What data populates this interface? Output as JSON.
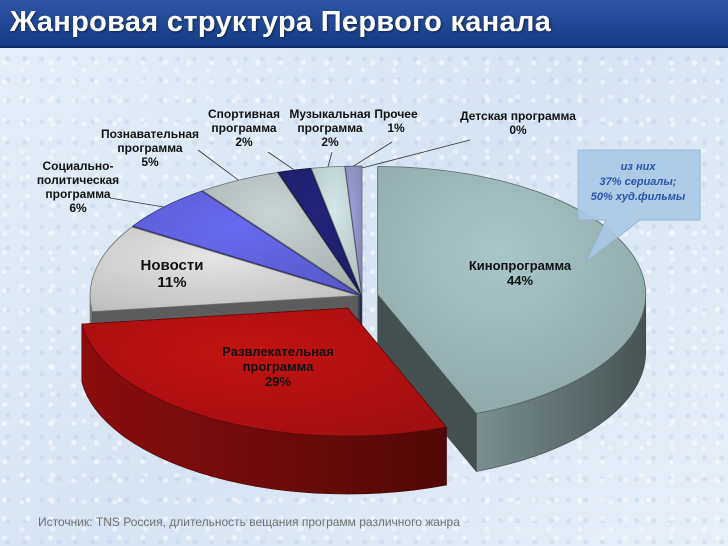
{
  "page": {
    "title": "Жанровая структура Первого канала",
    "source": "Источник: TNS Россия, длительность вещания программ различного жанра"
  },
  "chart_data": {
    "type": "pie",
    "title": "",
    "slices": [
      {
        "lines": [
          "Кинопрограмма",
          "44%"
        ],
        "value": 44,
        "color": "#a9c6c8"
      },
      {
        "lines": [
          "Развлекательная",
          "программа",
          "29%"
        ],
        "value": 29,
        "color": "#c21212"
      },
      {
        "lines": [
          "Новости",
          "11%"
        ],
        "value": 11,
        "color": "#e5e5e5"
      },
      {
        "lines": [
          "Социально-",
          "политическая",
          "программа",
          "6%"
        ],
        "value": 6,
        "color": "#6a6af2"
      },
      {
        "lines": [
          "Познавательная",
          "программа",
          "5%"
        ],
        "value": 5,
        "color": "#c9d3d4"
      },
      {
        "lines": [
          "Спортивная",
          "программа",
          "2%"
        ],
        "value": 2,
        "color": "#22237a"
      },
      {
        "lines": [
          "Музыкальная",
          "программа",
          "2%"
        ],
        "value": 2,
        "color": "#d4e7e8"
      },
      {
        "lines": [
          "Прочее",
          "1%"
        ],
        "value": 1,
        "color": "#9c9ed6"
      },
      {
        "lines": [
          "Детская программа",
          "0%"
        ],
        "value": 0,
        "color": "#ffffff"
      }
    ],
    "annotation": {
      "lines": [
        "из них",
        "37% сериалы;",
        "50% худ.фильмы"
      ],
      "color": "#2b55a8"
    }
  }
}
